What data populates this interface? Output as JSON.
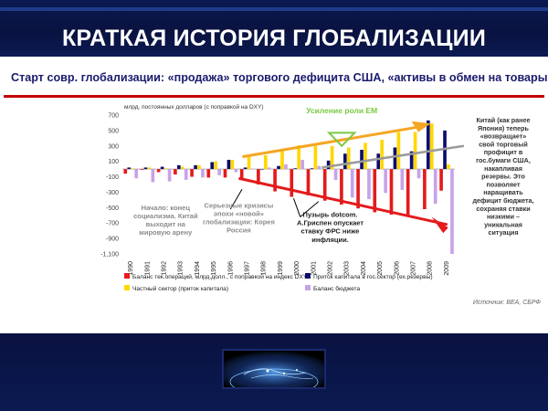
{
  "slide": {
    "title": "КРАТКАЯ ИСТОРИЯ ГЛОБАЛИЗАЦИИ",
    "subtitle": "Старт совр. глобализации: «продажа» торгового дефицита США, «активы в обмен на  товары»",
    "colors": {
      "navy": "#0b1a52",
      "red": "#e41a1c",
      "darkblue": "#0b0b6e",
      "yellow": "#ffd700",
      "lilac": "#c8a2e8",
      "orange": "#f5a623",
      "green": "#7ac943"
    }
  },
  "chart_data": {
    "type": "bar",
    "ylabel": "млрд. постоянных долларов (с поправкой на DXY)",
    "ylim": [
      -1100,
      700
    ],
    "yticks": [
      "700",
      "500",
      "300",
      "100",
      "-100",
      "-300",
      "-500",
      "-700",
      "-900",
      "-1,100"
    ],
    "categories": [
      "1990",
      "1991",
      "1992",
      "1993",
      "1994",
      "1995",
      "1996",
      "1997",
      "1998",
      "1999",
      "2000",
      "2001",
      "2002",
      "2003",
      "2004",
      "2005",
      "2006",
      "2007",
      "2008",
      "2009"
    ],
    "series": [
      {
        "name": "Баланс тек.операций, млрд.долл., с поправкой на индекс DXY",
        "color": "#e41a1c",
        "values": [
          -60,
          -10,
          -40,
          -70,
          -100,
          -110,
          -110,
          -140,
          -200,
          -290,
          -360,
          -340,
          -410,
          -460,
          -510,
          -560,
          -590,
          -620,
          -520,
          -280
        ]
      },
      {
        "name": "Приток капитала в гос.сектор (ех.резервы)",
        "color": "#0b0b6e",
        "values": [
          20,
          20,
          30,
          50,
          50,
          90,
          120,
          20,
          0,
          40,
          10,
          10,
          110,
          200,
          250,
          200,
          280,
          230,
          630,
          500
        ]
      },
      {
        "name": "Частный сектор (приток капитала)",
        "color": "#ffd700",
        "values": [
          10,
          20,
          10,
          30,
          50,
          100,
          120,
          160,
          180,
          260,
          310,
          300,
          300,
          280,
          340,
          380,
          480,
          480,
          590,
          60
        ]
      },
      {
        "name": "Баланс бюджета",
        "color": "#c8a2e8",
        "values": [
          -120,
          -170,
          -160,
          -140,
          -110,
          -80,
          -40,
          0,
          20,
          60,
          120,
          40,
          -140,
          -370,
          -390,
          -310,
          -270,
          -120,
          -450,
          -1100
        ]
      }
    ],
    "annotations": {
      "em_label": "Усиление роли ЕМ",
      "china": [
        "Китай (как ранее",
        "Япония) теперь",
        "«возвращает»",
        "свой торговый",
        "профицит в",
        "гос.бумаги США,",
        "накапливая",
        "резервы. Это",
        "позволяет",
        "наращивать",
        "дефицит бюджета,",
        "сохраняя ставки",
        "низкими –",
        "уникальная",
        "ситуация"
      ],
      "socialism": [
        "Начало: конец",
        "социализма. Китай",
        "выходит на",
        "мировую арену"
      ],
      "crises": [
        "Серьезные кризисы",
        "эпохи «новой»",
        "глобализации: Корея",
        "Россия"
      ],
      "dotcom": [
        "Пузырь dotcom.",
        "А.Гриспен опускает",
        "ставку ФРС ниже",
        "инфляции."
      ],
      "source": "Источник: BEA, СБРФ"
    }
  }
}
